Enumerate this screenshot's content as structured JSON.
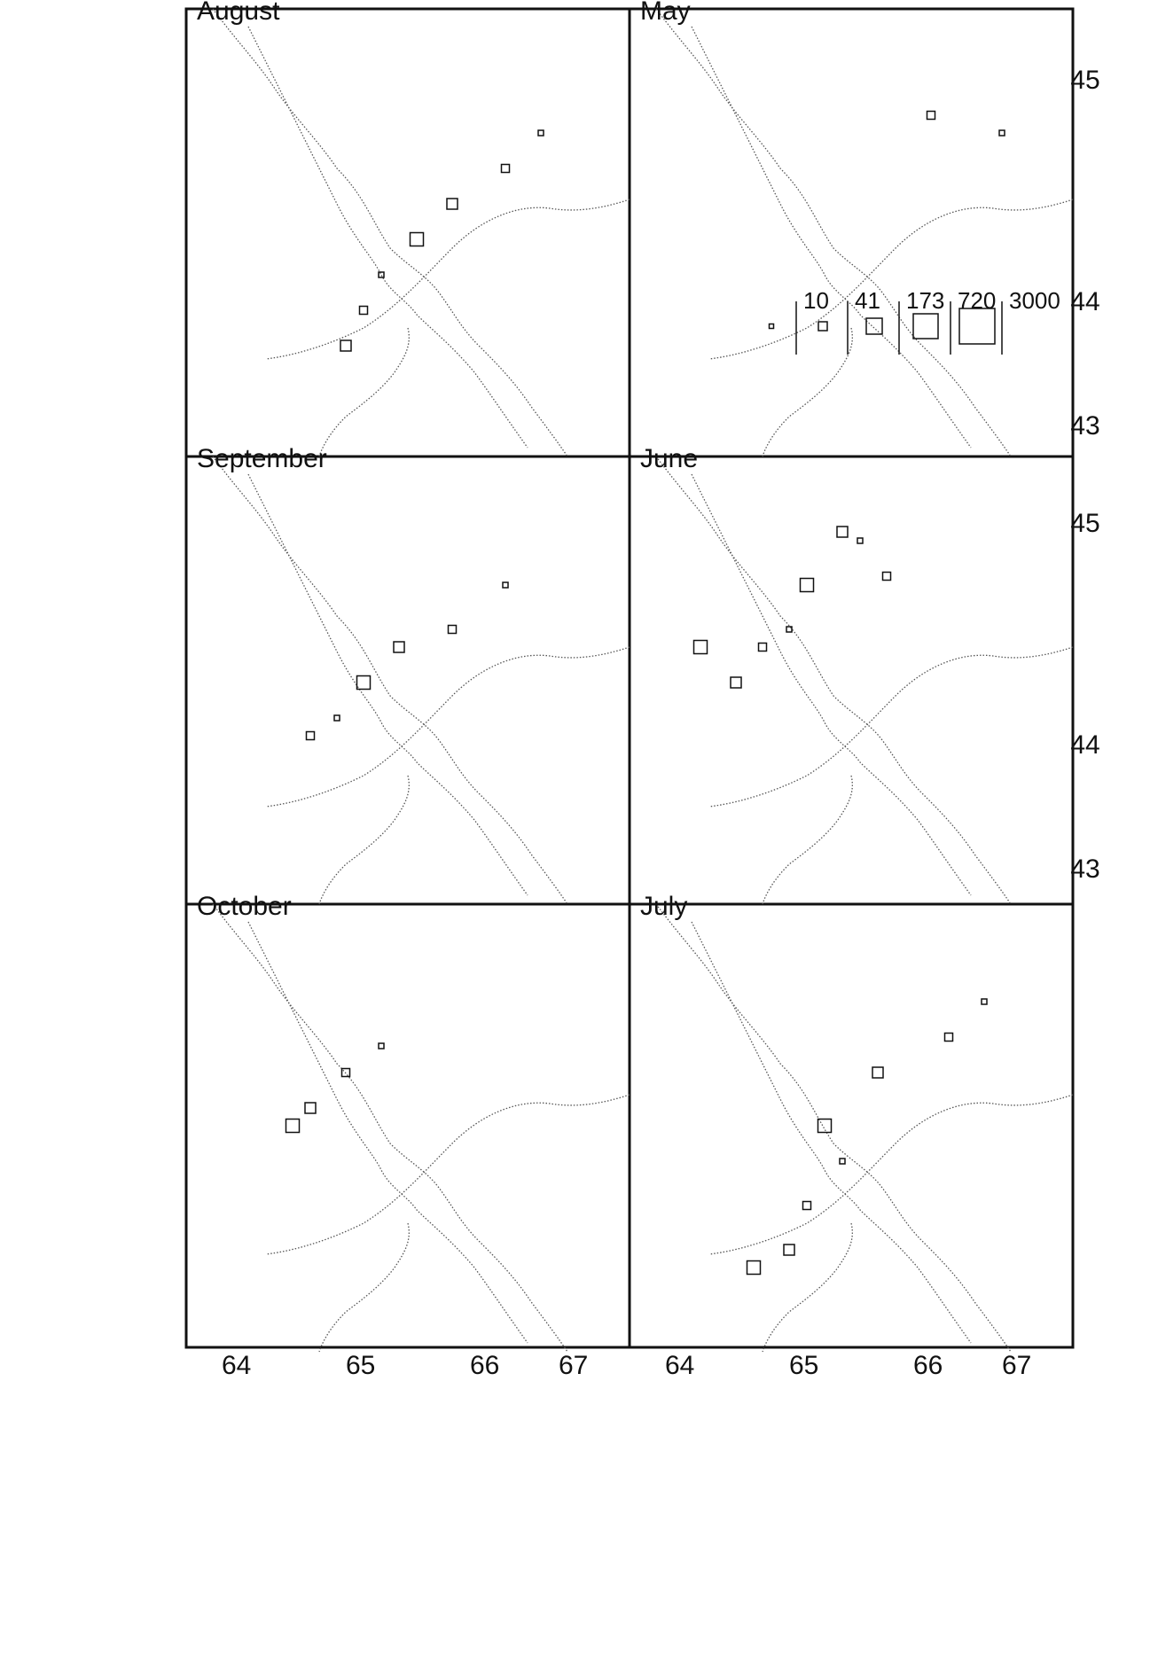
{
  "figure": {
    "panels": [
      {
        "id": "may",
        "label": "May"
      },
      {
        "id": "june",
        "label": "June"
      },
      {
        "id": "july",
        "label": "July"
      },
      {
        "id": "august",
        "label": "August"
      },
      {
        "id": "september",
        "label": "September"
      },
      {
        "id": "october",
        "label": "October"
      }
    ],
    "latitude_ticks": [
      "45",
      "44",
      "43"
    ],
    "longitude_ticks": [
      "67",
      "66",
      "65",
      "64"
    ],
    "legend": {
      "entries": [
        {
          "label": "3000"
        },
        {
          "label": "720"
        },
        {
          "label": "173"
        },
        {
          "label": "41"
        },
        {
          "label": "10"
        }
      ]
    },
    "colors": {
      "ink": "#111111",
      "coast": "#555555",
      "background": "#ffffff"
    }
  }
}
